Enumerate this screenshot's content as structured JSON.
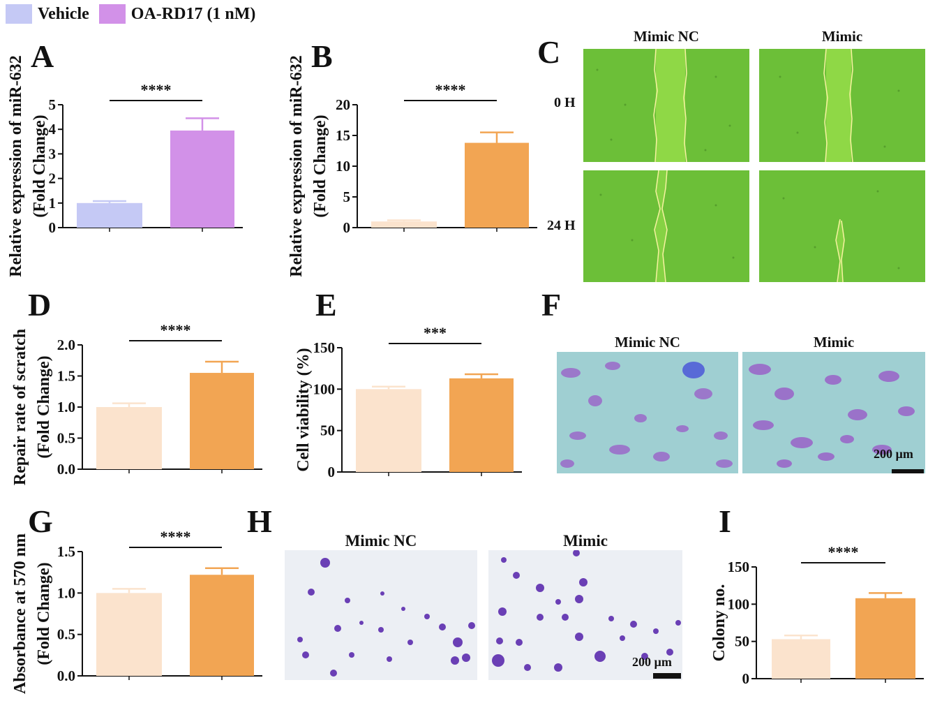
{
  "legend": {
    "items": [
      {
        "label": "Vehicle",
        "color": "#c5c9f5"
      },
      {
        "label": "OA-RD17 (1 nM)",
        "color": "#d291e8"
      }
    ]
  },
  "panels": {
    "A": "A",
    "B": "B",
    "C": "C",
    "D": "D",
    "E": "E",
    "F": "F",
    "G": "G",
    "H": "H",
    "I": "I"
  },
  "panel_c": {
    "col_titles": [
      "Mimic NC",
      "Mimic"
    ],
    "row_labels": [
      "0 H",
      "24 H"
    ]
  },
  "panel_f": {
    "col_titles": [
      "Mimic NC",
      "Mimic"
    ],
    "scale_bar": "200 µm"
  },
  "panel_h": {
    "col_titles": [
      "Mimic NC",
      "Mimic"
    ],
    "scale_bar": "200 µm"
  },
  "chart_data": [
    {
      "id": "A",
      "type": "bar",
      "values": [
        1.0,
        3.95
      ],
      "errors": [
        0.08,
        0.5
      ],
      "colors": [
        "#c5c9f5",
        "#d291e8"
      ],
      "ylabel": [
        "Relative expression of miR-632",
        "(Fold Change)"
      ],
      "ylim": [
        0,
        5
      ],
      "yticks": [
        0,
        1,
        2,
        3,
        4,
        5
      ],
      "ytick_labels": [
        "0",
        "1",
        "2",
        "3",
        "4",
        "5"
      ],
      "significance": "****"
    },
    {
      "id": "B",
      "type": "bar",
      "values": [
        1.0,
        13.8
      ],
      "errors": [
        0.2,
        1.7
      ],
      "colors": [
        "#fbe3cd",
        "#f2a553"
      ],
      "ylabel": [
        "Relative expression of miR-632",
        "(Fold Change)"
      ],
      "ylim": [
        0,
        20
      ],
      "yticks": [
        0,
        5,
        10,
        15,
        20
      ],
      "ytick_labels": [
        "0",
        "5",
        "10",
        "15",
        "20"
      ],
      "significance": "****"
    },
    {
      "id": "D",
      "type": "bar",
      "values": [
        1.0,
        1.55
      ],
      "errors": [
        0.06,
        0.18
      ],
      "colors": [
        "#fbe3cd",
        "#f2a553"
      ],
      "ylabel": [
        "Repair rate of scratch",
        "(Fold Change)"
      ],
      "ylim": [
        0,
        2
      ],
      "yticks": [
        0,
        0.5,
        1,
        1.5,
        2
      ],
      "ytick_labels": [
        "0.0",
        "0.5",
        "1.0",
        "1.5",
        "2.0"
      ],
      "significance": "****"
    },
    {
      "id": "E",
      "type": "bar",
      "values": [
        100,
        113
      ],
      "errors": [
        3,
        5
      ],
      "colors": [
        "#fbe3cd",
        "#f2a553"
      ],
      "ylabel": [
        "Cell viability (%)"
      ],
      "ylim": [
        0,
        150
      ],
      "yticks": [
        0,
        50,
        100,
        150
      ],
      "ytick_labels": [
        "0",
        "50",
        "100",
        "150"
      ],
      "significance": "***"
    },
    {
      "id": "G",
      "type": "bar",
      "values": [
        1.0,
        1.22
      ],
      "errors": [
        0.05,
        0.08
      ],
      "colors": [
        "#fbe3cd",
        "#f2a553"
      ],
      "ylabel": [
        "Absorbance at 570 nm",
        "(Fold Change)"
      ],
      "ylim": [
        0,
        1.5
      ],
      "yticks": [
        0,
        0.5,
        1,
        1.5
      ],
      "ytick_labels": [
        "0.0",
        "0.5",
        "1.0",
        "1.5"
      ],
      "significance": "****"
    },
    {
      "id": "I",
      "type": "bar",
      "values": [
        53,
        108
      ],
      "errors": [
        5,
        7
      ],
      "colors": [
        "#fbe3cd",
        "#f2a553"
      ],
      "ylabel": [
        "Colony no."
      ],
      "ylim": [
        0,
        150
      ],
      "yticks": [
        0,
        50,
        100,
        150
      ],
      "ytick_labels": [
        "0",
        "50",
        "100",
        "150"
      ],
      "significance": "****"
    }
  ]
}
